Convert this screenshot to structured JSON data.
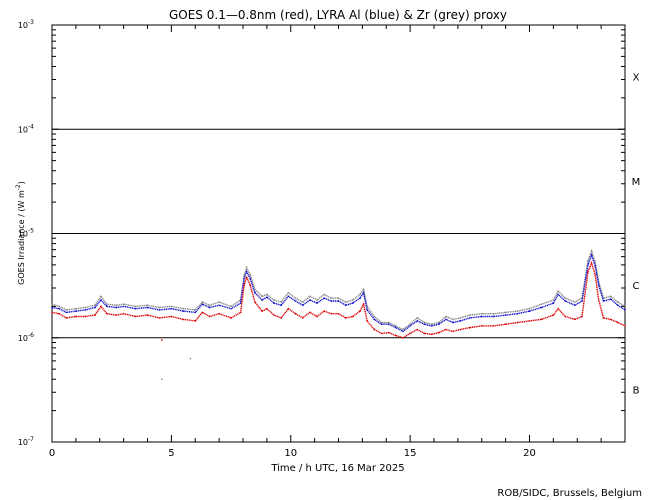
{
  "chart_data": {
    "type": "line",
    "title": "GOES 0.1—0.8nm (red), LYRA Al (blue) & Zr (grey) proxy",
    "xlabel": "Time / h UTC, 16 Mar 2025",
    "ylabel": "GOES Irradiance / (W m",
    "ylabel_sup": "-2",
    "ylabel_close": ")",
    "credit": "ROB/SIDC, Brussels, Belgium",
    "xlim": [
      0,
      24
    ],
    "ylim": [
      1e-07,
      0.001
    ],
    "yscale": "log",
    "x_ticks": [
      {
        "value": 0,
        "label": "0"
      },
      {
        "value": 5,
        "label": "5"
      },
      {
        "value": 10,
        "label": "10"
      },
      {
        "value": 15,
        "label": "15"
      },
      {
        "value": 20,
        "label": "20"
      }
    ],
    "y_ticks": [
      {
        "value": 0.001,
        "base": "10",
        "exp": "-3"
      },
      {
        "value": 0.0001,
        "base": "10",
        "exp": "-4"
      },
      {
        "value": 1e-05,
        "base": "10",
        "exp": "-5"
      },
      {
        "value": 1e-06,
        "base": "10",
        "exp": "-6"
      },
      {
        "value": 1e-07,
        "base": "10",
        "exp": "-7"
      }
    ],
    "class_lines": [
      0.0001,
      1e-05,
      1e-06
    ],
    "flare_classes": [
      {
        "label": "X",
        "y": 0.00032
      },
      {
        "label": "M",
        "y": 3.2e-05
      },
      {
        "label": "C",
        "y": 3.2e-06
      },
      {
        "label": "B",
        "y": 3.2e-07
      }
    ],
    "series": [
      {
        "color": "#888888",
        "x": [
          0,
          0.3,
          0.6,
          1.0,
          1.4,
          1.8,
          2.05,
          2.3,
          2.7,
          3.0,
          3.5,
          4.0,
          4.5,
          5.0,
          5.5,
          6.0,
          6.3,
          6.6,
          7.0,
          7.5,
          7.9,
          8.05,
          8.15,
          8.3,
          8.5,
          8.8,
          9.0,
          9.3,
          9.6,
          9.9,
          10.2,
          10.5,
          10.8,
          11.1,
          11.4,
          11.7,
          12.0,
          12.3,
          12.6,
          12.9,
          13.05,
          13.2,
          13.5,
          13.8,
          14.1,
          14.4,
          14.7,
          15.0,
          15.3,
          15.6,
          15.9,
          16.2,
          16.5,
          16.8,
          17.1,
          17.5,
          18.0,
          18.5,
          19.0,
          19.5,
          20.0,
          20.5,
          21.0,
          21.2,
          21.5,
          21.9,
          22.2,
          22.45,
          22.6,
          22.75,
          22.9,
          23.1,
          23.4,
          23.7,
          24.0
        ],
        "y": [
          2.1e-06,
          2e-06,
          1.85e-06,
          1.9e-06,
          1.95e-06,
          2.05e-06,
          2.5e-06,
          2.1e-06,
          2.05e-06,
          2.1e-06,
          2e-06,
          2.05e-06,
          1.95e-06,
          2e-06,
          1.9e-06,
          1.85e-06,
          2.2e-06,
          2.05e-06,
          2.2e-06,
          2e-06,
          2.3e-06,
          4e-06,
          4.7e-06,
          4e-06,
          2.9e-06,
          2.5e-06,
          2.6e-06,
          2.3e-06,
          2.2e-06,
          2.7e-06,
          2.4e-06,
          2.2e-06,
          2.5e-06,
          2.3e-06,
          2.6e-06,
          2.4e-06,
          2.4e-06,
          2.2e-06,
          2.3e-06,
          2.6e-06,
          2.9e-06,
          2e-06,
          1.6e-06,
          1.4e-06,
          1.4e-06,
          1.3e-06,
          1.2e-06,
          1.35e-06,
          1.55e-06,
          1.4e-06,
          1.35e-06,
          1.4e-06,
          1.6e-06,
          1.5e-06,
          1.55e-06,
          1.65e-06,
          1.7e-06,
          1.7e-06,
          1.75e-06,
          1.8e-06,
          1.9e-06,
          2.1e-06,
          2.3e-06,
          2.8e-06,
          2.4e-06,
          2.2e-06,
          2.4e-06,
          5.5e-06,
          6.8e-06,
          5.3e-06,
          3.4e-06,
          2.4e-06,
          2.5e-06,
          2.2e-06,
          2e-06
        ]
      },
      {
        "color": "#1010cc",
        "x": [
          0,
          0.3,
          0.6,
          1.0,
          1.4,
          1.8,
          2.05,
          2.3,
          2.7,
          3.0,
          3.5,
          4.0,
          4.5,
          5.0,
          5.5,
          6.0,
          6.3,
          6.6,
          7.0,
          7.5,
          7.9,
          8.05,
          8.15,
          8.3,
          8.5,
          8.8,
          9.0,
          9.3,
          9.6,
          9.9,
          10.2,
          10.5,
          10.8,
          11.1,
          11.4,
          11.7,
          12.0,
          12.3,
          12.6,
          12.9,
          13.05,
          13.2,
          13.5,
          13.8,
          14.1,
          14.4,
          14.7,
          15.0,
          15.3,
          15.6,
          15.9,
          16.2,
          16.5,
          16.8,
          17.1,
          17.5,
          18.0,
          18.5,
          19.0,
          19.5,
          20.0,
          20.5,
          21.0,
          21.2,
          21.5,
          21.9,
          22.2,
          22.45,
          22.6,
          22.75,
          22.9,
          23.1,
          23.4,
          23.7,
          24.0
        ],
        "y": [
          1.95e-06,
          1.9e-06,
          1.75e-06,
          1.8e-06,
          1.85e-06,
          1.95e-06,
          2.3e-06,
          2e-06,
          1.95e-06,
          2e-06,
          1.9e-06,
          1.95e-06,
          1.85e-06,
          1.9e-06,
          1.8e-06,
          1.75e-06,
          2.1e-06,
          1.95e-06,
          2.05e-06,
          1.9e-06,
          2.15e-06,
          3.7e-06,
          4.3e-06,
          3.7e-06,
          2.7e-06,
          2.3e-06,
          2.45e-06,
          2.15e-06,
          2.05e-06,
          2.5e-06,
          2.25e-06,
          2.05e-06,
          2.3e-06,
          2.15e-06,
          2.4e-06,
          2.25e-06,
          2.25e-06,
          2.05e-06,
          2.15e-06,
          2.4e-06,
          2.7e-06,
          1.85e-06,
          1.5e-06,
          1.35e-06,
          1.35e-06,
          1.25e-06,
          1.15e-06,
          1.3e-06,
          1.45e-06,
          1.35e-06,
          1.3e-06,
          1.35e-06,
          1.5e-06,
          1.4e-06,
          1.45e-06,
          1.55e-06,
          1.6e-06,
          1.6e-06,
          1.65e-06,
          1.7e-06,
          1.8e-06,
          1.95e-06,
          2.15e-06,
          2.6e-06,
          2.25e-06,
          2.05e-06,
          2.25e-06,
          5e-06,
          6.2e-06,
          4.9e-06,
          3.2e-06,
          2.25e-06,
          2.35e-06,
          2.05e-06,
          1.85e-06
        ]
      },
      {
        "color": "#dd0000",
        "x": [
          0,
          0.3,
          0.6,
          1.0,
          1.4,
          1.8,
          2.05,
          2.3,
          2.7,
          3.0,
          3.5,
          4.0,
          4.5,
          5.0,
          5.5,
          6.0,
          6.3,
          6.6,
          7.0,
          7.5,
          7.9,
          8.05,
          8.15,
          8.3,
          8.5,
          8.8,
          9.0,
          9.3,
          9.6,
          9.9,
          10.2,
          10.5,
          10.8,
          11.1,
          11.4,
          11.7,
          12.0,
          12.3,
          12.6,
          12.9,
          13.05,
          13.2,
          13.5,
          13.8,
          14.1,
          14.4,
          14.7,
          15.0,
          15.3,
          15.6,
          15.9,
          16.2,
          16.5,
          16.8,
          17.1,
          17.5,
          18.0,
          18.5,
          19.0,
          19.5,
          20.0,
          20.5,
          21.0,
          21.2,
          21.5,
          21.9,
          22.2,
          22.45,
          22.6,
          22.75,
          22.9,
          23.1,
          23.4,
          23.7,
          24.0
        ],
        "y": [
          1.75e-06,
          1.7e-06,
          1.55e-06,
          1.6e-06,
          1.6e-06,
          1.65e-06,
          2e-06,
          1.7e-06,
          1.65e-06,
          1.7e-06,
          1.6e-06,
          1.65e-06,
          1.55e-06,
          1.6e-06,
          1.5e-06,
          1.45e-06,
          1.75e-06,
          1.6e-06,
          1.7e-06,
          1.55e-06,
          1.75e-06,
          3.2e-06,
          3.8e-06,
          3.2e-06,
          2.2e-06,
          1.8e-06,
          1.9e-06,
          1.65e-06,
          1.55e-06,
          1.9e-06,
          1.7e-06,
          1.55e-06,
          1.75e-06,
          1.6e-06,
          1.8e-06,
          1.7e-06,
          1.7e-06,
          1.55e-06,
          1.6e-06,
          1.8e-06,
          2.1e-06,
          1.45e-06,
          1.2e-06,
          1.1e-06,
          1.12e-06,
          1.05e-06,
          1e-06,
          1.1e-06,
          1.2e-06,
          1.1e-06,
          1.08e-06,
          1.12e-06,
          1.2e-06,
          1.15e-06,
          1.2e-06,
          1.25e-06,
          1.3e-06,
          1.3e-06,
          1.35e-06,
          1.4e-06,
          1.45e-06,
          1.5e-06,
          1.65e-06,
          1.9e-06,
          1.6e-06,
          1.5e-06,
          1.6e-06,
          4.3e-06,
          5.2e-06,
          4e-06,
          2.3e-06,
          1.55e-06,
          1.5e-06,
          1.4e-06,
          1.3e-06
        ]
      }
    ],
    "stray_points": [
      {
        "x": 4.6,
        "y": 9.5e-07,
        "color": "#dd0000"
      },
      {
        "x": 5.8,
        "y": 6.3e-07,
        "color": "#888888"
      },
      {
        "x": 4.6,
        "y": 4e-07,
        "color": "#888888"
      }
    ]
  }
}
